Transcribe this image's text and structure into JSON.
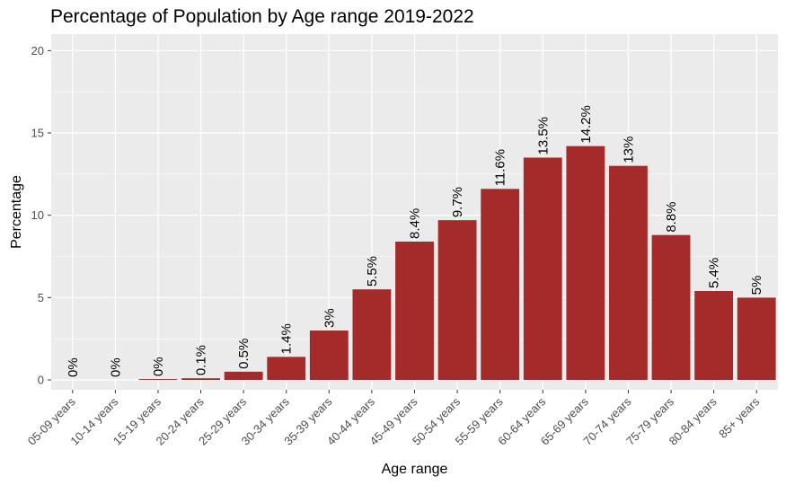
{
  "chart_data": {
    "type": "bar",
    "title": "Percentage of Population by Age range 2019-2022",
    "xlabel": "Age range",
    "ylabel": "Percentage",
    "categories": [
      "05-09 years",
      "10-14 years",
      "15-19 years",
      "20-24 years",
      "25-29 years",
      "30-34 years",
      "35-39 years",
      "40-44 years",
      "45-49 years",
      "50-54 years",
      "55-59 years",
      "60-64 years",
      "65-69 years",
      "70-74 years",
      "75-79 years",
      "80-84 years",
      "85+ years"
    ],
    "values": [
      0,
      0,
      0.05,
      0.1,
      0.5,
      1.4,
      3,
      5.5,
      8.4,
      9.7,
      11.6,
      13.5,
      14.2,
      13,
      8.8,
      5.4,
      5
    ],
    "data_labels": [
      "0%",
      "0%",
      "0%",
      "0.1%",
      "0.5%",
      "1.4%",
      "3%",
      "5.5%",
      "8.4%",
      "9.7%",
      "11.6%",
      "13.5%",
      "14.2%",
      "13%",
      "8.8%",
      "5.4%",
      "5%"
    ],
    "y_ticks": [
      0,
      5,
      10,
      15,
      20
    ],
    "ylim": [
      -0.6,
      21
    ],
    "grid": true,
    "legend": "none",
    "colors": {
      "bar": "#a52a2a",
      "panel": "#ebebeb",
      "grid": "#ffffff"
    }
  }
}
